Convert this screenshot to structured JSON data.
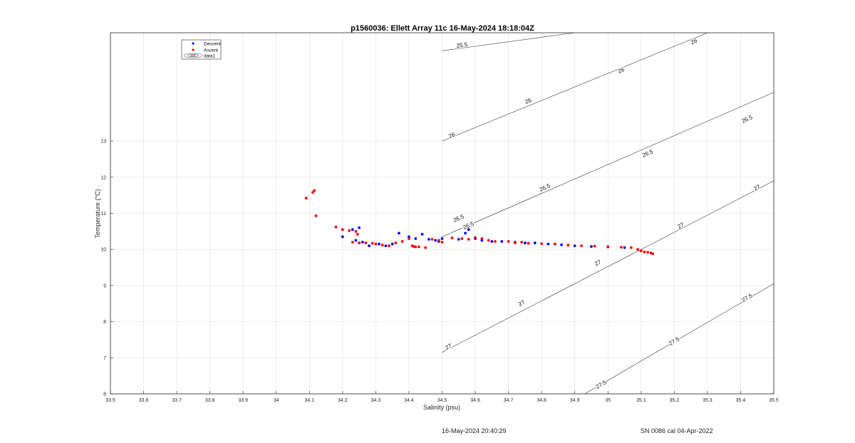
{
  "chart_data": {
    "type": "scatter",
    "title": "p1560036: Ellett Array 11c 16-May-2024 18:18:04Z",
    "xlabel": "Salinity (psu)",
    "ylabel": "Temperature (°C)",
    "xlim": [
      33.5,
      35.5
    ],
    "ylim": [
      6,
      16
    ],
    "xticks": [
      33.5,
      33.6,
      33.7,
      33.8,
      33.9,
      34,
      34.1,
      34.2,
      34.3,
      34.4,
      34.5,
      34.6,
      34.7,
      34.8,
      34.9,
      35,
      35.1,
      35.2,
      35.3,
      35.4,
      35.5
    ],
    "yticks": [
      6,
      7,
      8,
      9,
      10,
      11,
      12,
      13
    ],
    "grid": true,
    "legend": {
      "placement": "top-left",
      "entries": [
        {
          "name": "Descent",
          "color": "#0000ff",
          "marker": "dot"
        },
        {
          "name": "Ascent",
          "color": "#ff0000",
          "marker": "dot"
        },
        {
          "name": "data1",
          "color": "#333333",
          "marker": "contour"
        }
      ]
    },
    "series": [
      {
        "name": "Descent",
        "color": "#0000ff",
        "x": [
          34.2,
          34.23,
          34.24,
          34.25,
          34.26,
          34.28,
          34.31,
          34.33,
          34.35,
          34.37,
          34.4,
          34.42,
          34.44,
          34.46,
          34.48,
          34.49,
          34.5,
          34.55,
          34.57,
          34.58,
          34.6,
          34.62,
          34.65,
          34.68,
          34.72,
          34.75,
          34.78,
          34.82,
          34.86,
          34.9,
          34.95,
          35.0,
          35.05
        ],
        "y": [
          10.35,
          10.55,
          10.25,
          10.6,
          10.2,
          10.1,
          10.15,
          10.1,
          10.15,
          10.45,
          10.35,
          10.3,
          10.42,
          10.28,
          10.25,
          10.22,
          10.3,
          10.28,
          10.45,
          10.55,
          10.3,
          10.25,
          10.22,
          10.22,
          10.2,
          10.18,
          10.18,
          10.15,
          10.13,
          10.1,
          10.08,
          10.07,
          10.05
        ]
      },
      {
        "name": "Ascent",
        "color": "#ff0000",
        "x": [
          34.09,
          34.11,
          34.115,
          34.12,
          34.18,
          34.2,
          34.22,
          34.24,
          34.245,
          34.23,
          34.25,
          34.27,
          34.29,
          34.3,
          34.32,
          34.34,
          34.36,
          34.38,
          34.4,
          34.41,
          34.415,
          34.42,
          34.43,
          34.45,
          34.47,
          34.49,
          34.5,
          34.53,
          34.56,
          34.58,
          34.6,
          34.62,
          34.64,
          34.66,
          34.7,
          34.72,
          34.74,
          34.76,
          34.8,
          34.84,
          34.88,
          34.92,
          34.96,
          35.0,
          35.04,
          35.07,
          35.09,
          35.1,
          35.11,
          35.12,
          35.13,
          35.135
        ],
        "y": [
          11.42,
          11.58,
          11.63,
          10.93,
          10.62,
          10.55,
          10.52,
          10.5,
          10.42,
          10.2,
          10.18,
          10.18,
          10.17,
          10.15,
          10.12,
          10.1,
          10.18,
          10.22,
          10.3,
          10.1,
          10.08,
          10.07,
          10.07,
          10.05,
          10.28,
          10.25,
          10.2,
          10.32,
          10.3,
          10.28,
          10.33,
          10.3,
          10.25,
          10.22,
          10.22,
          10.18,
          10.2,
          10.17,
          10.16,
          10.15,
          10.12,
          10.1,
          10.09,
          10.08,
          10.06,
          10.05,
          10.0,
          9.96,
          9.93,
          9.92,
          9.9,
          9.88
        ]
      }
    ],
    "contours": [
      {
        "label": "25.5",
        "x": [
          34.5,
          34.9
        ],
        "y": [
          15.5,
          16.0
        ]
      },
      {
        "label": "26",
        "x": [
          34.5,
          35.3
        ],
        "y": [
          13.0,
          16.0
        ]
      },
      {
        "label": "26.5",
        "x": [
          34.5,
          35.5
        ],
        "y": [
          10.35,
          14.35
        ]
      },
      {
        "label": "27",
        "x": [
          34.5,
          35.5
        ],
        "y": [
          7.15,
          11.9
        ]
      },
      {
        "label": "27.5",
        "x": [
          34.93,
          35.5
        ],
        "y": [
          6.0,
          9.05
        ]
      }
    ],
    "contour_labels": [
      {
        "text": "25.5",
        "x": 34.56,
        "y": 15.65
      },
      {
        "text": "26",
        "x": 35.26,
        "y": 15.75
      },
      {
        "text": "26",
        "x": 35.04,
        "y": 14.95
      },
      {
        "text": "26",
        "x": 34.76,
        "y": 14.1
      },
      {
        "text": "26",
        "x": 34.53,
        "y": 13.15
      },
      {
        "text": "26.5",
        "x": 35.42,
        "y": 13.6
      },
      {
        "text": "26.5",
        "x": 35.12,
        "y": 12.65
      },
      {
        "text": "26.5",
        "x": 34.81,
        "y": 11.7
      },
      {
        "text": "26.5",
        "x": 34.55,
        "y": 10.85
      },
      {
        "text": "26.5",
        "x": 34.58,
        "y": 10.65
      },
      {
        "text": "27",
        "x": 35.45,
        "y": 11.7
      },
      {
        "text": "27",
        "x": 35.22,
        "y": 10.65
      },
      {
        "text": "27",
        "x": 34.97,
        "y": 9.62
      },
      {
        "text": "27",
        "x": 34.74,
        "y": 8.5
      },
      {
        "text": "27",
        "x": 34.52,
        "y": 7.3
      },
      {
        "text": "27.5",
        "x": 35.42,
        "y": 8.65
      },
      {
        "text": "27.5",
        "x": 35.2,
        "y": 7.45
      },
      {
        "text": "27.5",
        "x": 34.98,
        "y": 6.25
      }
    ]
  },
  "footer": {
    "timestamp": "16-May-2024 20:40:29",
    "serial": "SN 0086 cal 04-Apr-2022"
  }
}
